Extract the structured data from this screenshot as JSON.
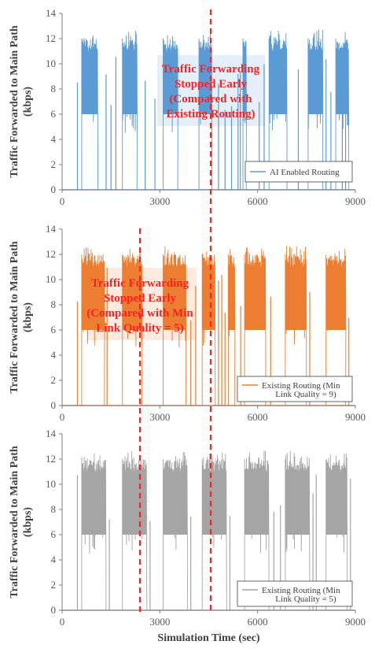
{
  "chart_data": [
    {
      "type": "line",
      "xlim": [
        0,
        9000
      ],
      "ylim": [
        0,
        14
      ],
      "x_ticks": [
        "0",
        "3000",
        "6000",
        "9000"
      ],
      "y_ticks": [
        "0",
        "2",
        "4",
        "6",
        "8",
        "10",
        "12",
        "14"
      ],
      "ylabel_line1": "Traffic Forwarded to Main Path",
      "ylabel_line2": "(kbps)",
      "grid": false,
      "series": [
        {
          "name_line1": "AI Enabled Routing",
          "name_line2": "",
          "color": "#5b9bd5",
          "bursts": [
            [
              600,
              1100
            ],
            [
              1850,
              2300
            ],
            [
              3100,
              3550
            ],
            [
              4200,
              4600
            ],
            [
              5550,
              5650
            ],
            [
              6350,
              6900
            ],
            [
              7550,
              8000
            ],
            [
              8400,
              8800
            ]
          ],
          "spikes": [
            470,
            1350,
            1500,
            1650,
            2550,
            2850,
            4800,
            5000,
            5200,
            5400,
            5470,
            6050,
            6200,
            7250,
            8100,
            8250,
            8600,
            8700
          ],
          "low": 6,
          "high": 12
        }
      ],
      "annotation": [
        "Traffic Forwarding",
        "Stopped Early",
        "(Compared with",
        "Existing Routing)"
      ],
      "legend_position": "bottom-right"
    },
    {
      "type": "line",
      "xlim": [
        0,
        9000
      ],
      "ylim": [
        0,
        14
      ],
      "x_ticks": [
        "0",
        "3000",
        "6000",
        "9000"
      ],
      "y_ticks": [
        "0",
        "2",
        "4",
        "6",
        "8",
        "10",
        "12",
        "14"
      ],
      "ylabel_line1": "Traffic Forwarded to Main Path",
      "ylabel_line2": "(kbps)",
      "grid": false,
      "series": [
        {
          "name_line1": "Existing Routing (Min",
          "name_line2": "Link Quality = 9)",
          "color": "#ed7d31",
          "bursts": [
            [
              600,
              1300
            ],
            [
              1850,
              2450
            ],
            [
              3100,
              3800
            ],
            [
              4300,
              4700
            ],
            [
              5100,
              5300
            ],
            [
              5600,
              6250
            ],
            [
              6850,
              7500
            ],
            [
              8100,
              8700
            ]
          ],
          "spikes": [
            470,
            1380,
            3950,
            4100,
            4800,
            4900,
            5000,
            5480,
            6400,
            7600,
            8800
          ],
          "low": 6,
          "high": 12
        }
      ],
      "annotation": [
        "Traffic Forwarding",
        "Stopped Early",
        "(Compared with Min",
        "Link Quality = 5)"
      ],
      "legend_position": "bottom-right"
    },
    {
      "type": "line",
      "xlim": [
        0,
        9000
      ],
      "ylim": [
        0,
        14
      ],
      "x_ticks": [
        "0",
        "3000",
        "6000",
        "9000"
      ],
      "y_ticks": [
        "0",
        "2",
        "4",
        "6",
        "8",
        "10",
        "12",
        "14"
      ],
      "ylabel_line1": "Traffic Forwarded to Main Path",
      "ylabel_line2": "(kbps)",
      "xlabel": "Simulation Time (sec)",
      "grid": false,
      "series": [
        {
          "name_line1": "Existing Routing (Min",
          "name_line2": "Link Quality = 5)",
          "color": "#a5a5a5",
          "bursts": [
            [
              600,
              1350
            ],
            [
              1850,
              2600
            ],
            [
              3100,
              3850
            ],
            [
              4300,
              5050
            ],
            [
              5600,
              6350
            ],
            [
              6850,
              7600
            ],
            [
              8100,
              8750
            ]
          ],
          "spikes": [
            470,
            1450,
            2700,
            3950,
            5150,
            6500,
            6700,
            7700,
            7800,
            8850
          ],
          "low": 6,
          "high": 12
        }
      ],
      "legend_position": "bottom-right"
    }
  ]
}
